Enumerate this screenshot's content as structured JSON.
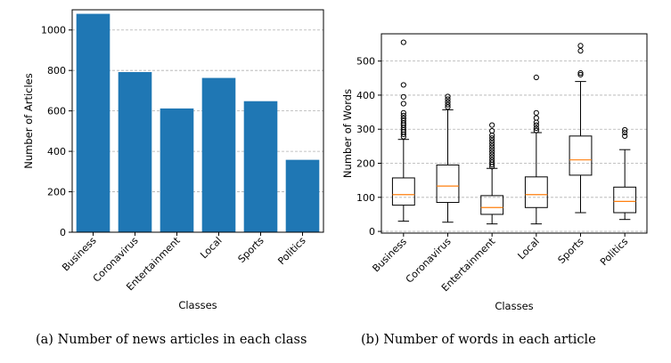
{
  "chart_data": [
    {
      "type": "bar",
      "categories": [
        "Business",
        "Coronavirus",
        "Entertainment",
        "Local",
        "Sports",
        "Politics"
      ],
      "values": [
        1080,
        792,
        612,
        763,
        648,
        358
      ],
      "ylim": [
        0,
        1100
      ],
      "yticks": [
        0,
        200,
        400,
        600,
        800,
        1000
      ],
      "xlabel": "Classes",
      "ylabel": "Number of Articles",
      "grid": "horizontal-dashed",
      "color": "#1f77b4",
      "caption": "(a) Number of news articles in each class"
    },
    {
      "type": "box",
      "categories": [
        "Business",
        "Coronavirus",
        "Entertainment",
        "Local",
        "Sports",
        "Politics"
      ],
      "boxes": [
        {
          "whisker_low": 30,
          "q1": 77,
          "median": 108,
          "q3": 157,
          "whisker_high": 270,
          "outliers": [
            278,
            285,
            292,
            298,
            305,
            312,
            318,
            325,
            332,
            340,
            348,
            375,
            395,
            430,
            555
          ]
        },
        {
          "whisker_low": 27,
          "q1": 85,
          "median": 133,
          "q3": 195,
          "whisker_high": 357,
          "outliers": [
            365,
            372,
            380,
            388,
            396
          ]
        },
        {
          "whisker_low": 22,
          "q1": 50,
          "median": 70,
          "q3": 105,
          "whisker_high": 185,
          "outliers": [
            190,
            196,
            203,
            210,
            218,
            226,
            234,
            242,
            250,
            258,
            266,
            274,
            282,
            295,
            312
          ]
        },
        {
          "whisker_low": 22,
          "q1": 70,
          "median": 108,
          "q3": 160,
          "whisker_high": 290,
          "outliers": [
            296,
            303,
            312,
            320,
            333,
            348,
            452
          ]
        },
        {
          "whisker_low": 55,
          "q1": 165,
          "median": 210,
          "q3": 280,
          "whisker_high": 440,
          "outliers": [
            460,
            465,
            530,
            545
          ]
        },
        {
          "whisker_low": 35,
          "q1": 55,
          "median": 88,
          "q3": 130,
          "whisker_high": 240,
          "outliers": [
            280,
            290,
            298
          ]
        }
      ],
      "ylim": [
        -5,
        580
      ],
      "yticks": [
        0,
        100,
        200,
        300,
        400,
        500
      ],
      "xlabel": "Classes",
      "ylabel": "Number of Words",
      "grid": "horizontal-dashed",
      "median_color": "#ff7f0e",
      "caption": "(b) Number of words in each article"
    }
  ]
}
